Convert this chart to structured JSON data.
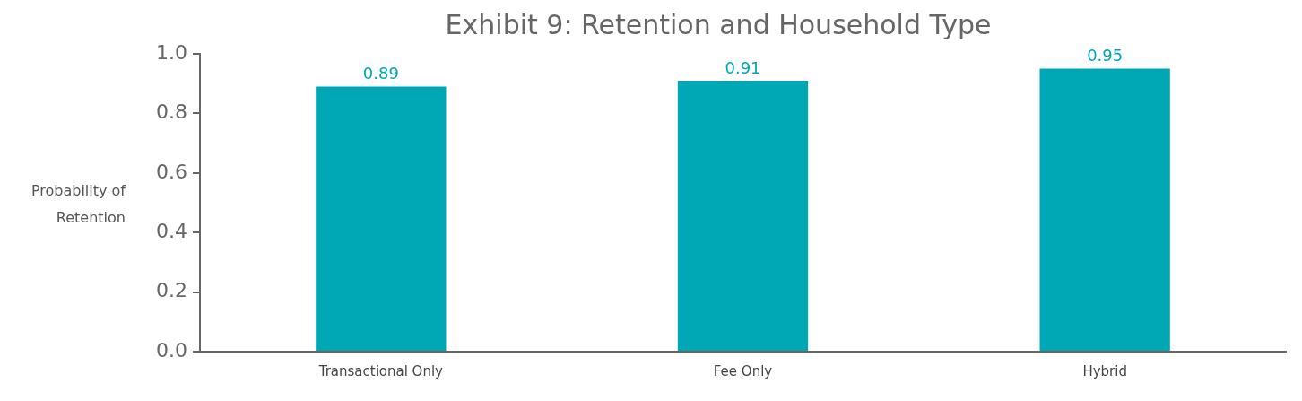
{
  "chart_data": {
    "type": "bar",
    "title": "Exhibit 9: Retention and Household Type",
    "ylabel": "Probability of Retention",
    "categories": [
      "Transactional Only",
      "Fee Only",
      "Hybrid"
    ],
    "values": [
      0.89,
      0.91,
      0.95
    ],
    "color": "#00a8b5",
    "ylim": [
      0,
      1
    ],
    "yticks": [
      {
        "value": 0,
        "label": "0.0"
      },
      {
        "value": 0.2,
        "label": "0.2"
      },
      {
        "value": 0.4,
        "label": "0.4"
      },
      {
        "value": 0.6,
        "label": "0.6"
      },
      {
        "value": 0.8,
        "label": "0.8"
      },
      {
        "value": 1,
        "label": "1.0"
      }
    ],
    "grid": false,
    "legend": false,
    "data_labels": true
  }
}
